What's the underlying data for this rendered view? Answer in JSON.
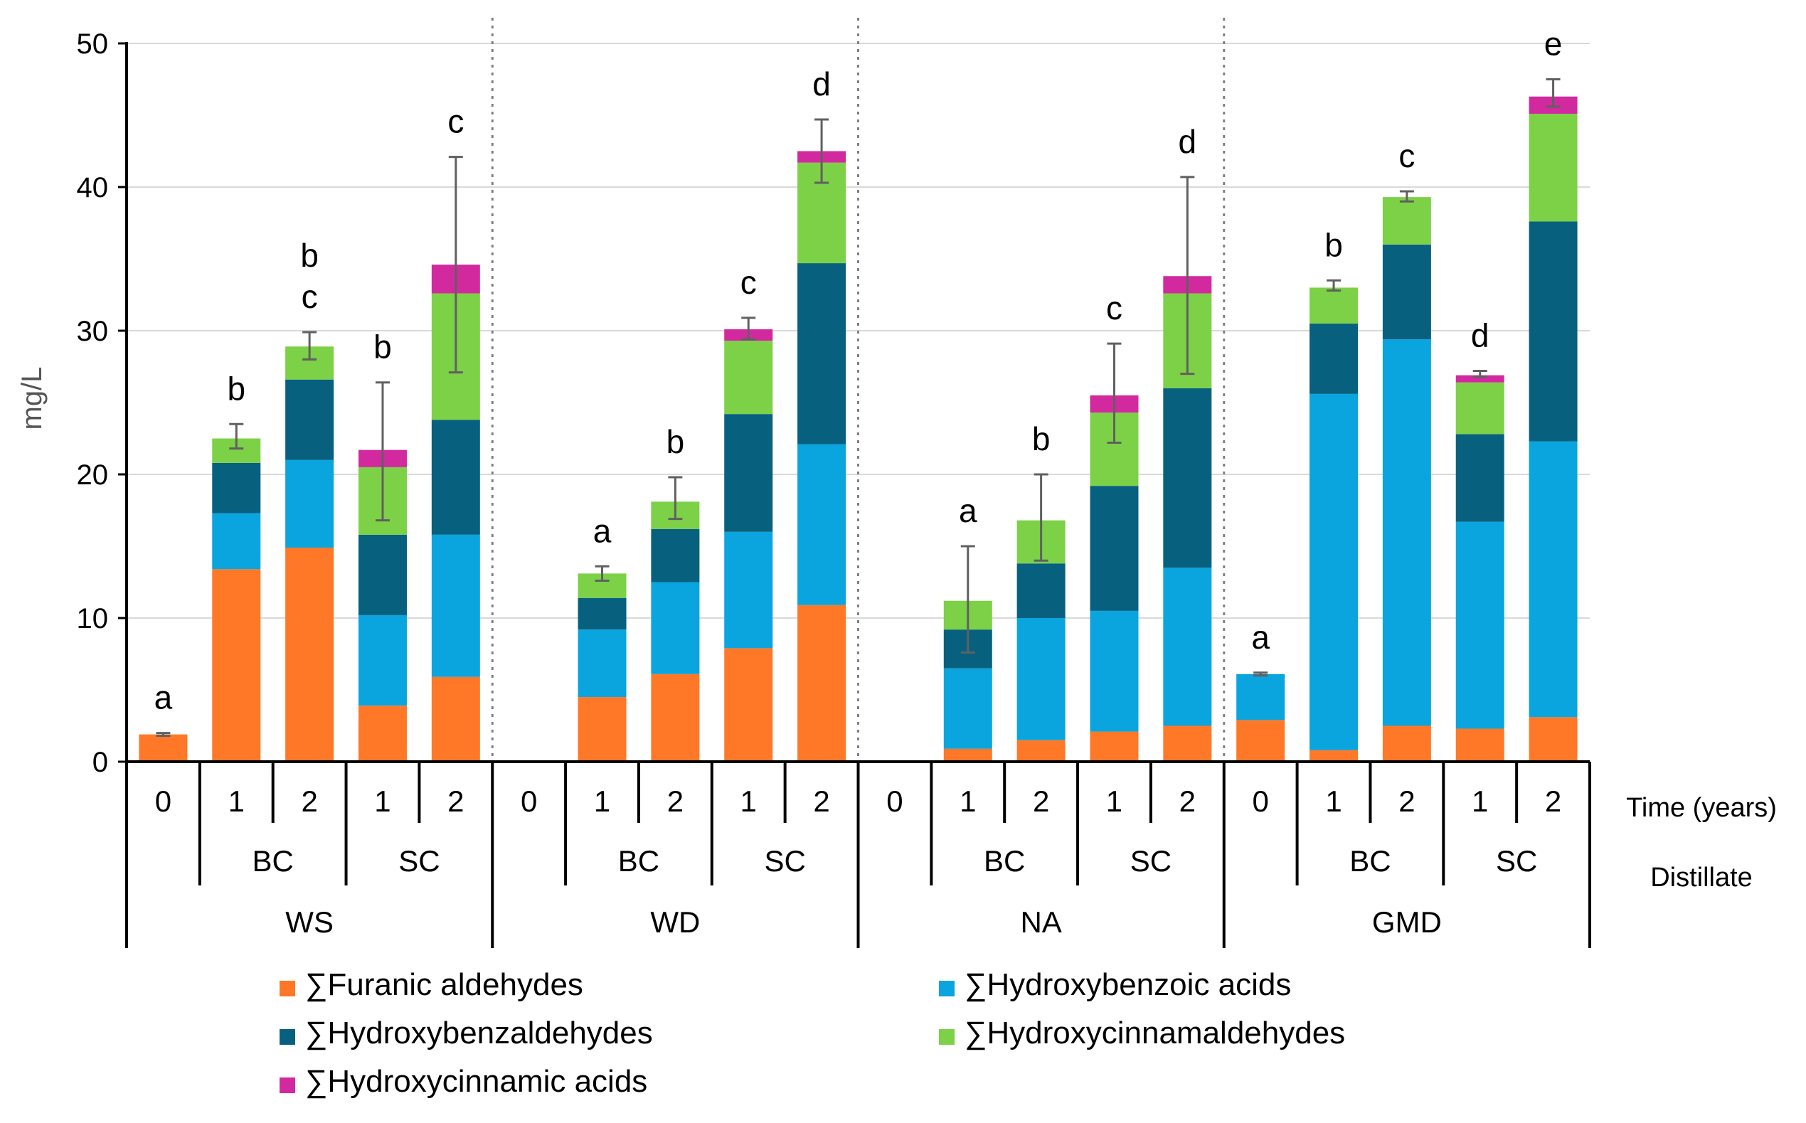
{
  "chart_data": {
    "type": "bar",
    "stacked": true,
    "ylabel": "mg/L",
    "ylim": [
      0,
      50
    ],
    "yticks": [
      0,
      10,
      20,
      30,
      40,
      50
    ],
    "grid": true,
    "time_row_label": "Time (years)",
    "distillate_row_label": "Distillate",
    "distillates": [
      "WS",
      "WD",
      "NA",
      "GMD"
    ],
    "subgroups": [
      "BC",
      "SC"
    ],
    "categories": [
      {
        "distillate": "WS",
        "subgroup": "",
        "time": "0"
      },
      {
        "distillate": "WS",
        "subgroup": "BC",
        "time": "1"
      },
      {
        "distillate": "WS",
        "subgroup": "BC",
        "time": "2"
      },
      {
        "distillate": "WS",
        "subgroup": "SC",
        "time": "1"
      },
      {
        "distillate": "WS",
        "subgroup": "SC",
        "time": "2"
      },
      {
        "distillate": "WD",
        "subgroup": "",
        "time": "0"
      },
      {
        "distillate": "WD",
        "subgroup": "BC",
        "time": "1"
      },
      {
        "distillate": "WD",
        "subgroup": "BC",
        "time": "2"
      },
      {
        "distillate": "WD",
        "subgroup": "SC",
        "time": "1"
      },
      {
        "distillate": "WD",
        "subgroup": "SC",
        "time": "2"
      },
      {
        "distillate": "NA",
        "subgroup": "",
        "time": "0"
      },
      {
        "distillate": "NA",
        "subgroup": "BC",
        "time": "1"
      },
      {
        "distillate": "NA",
        "subgroup": "BC",
        "time": "2"
      },
      {
        "distillate": "NA",
        "subgroup": "SC",
        "time": "1"
      },
      {
        "distillate": "NA",
        "subgroup": "SC",
        "time": "2"
      },
      {
        "distillate": "GMD",
        "subgroup": "",
        "time": "0"
      },
      {
        "distillate": "GMD",
        "subgroup": "BC",
        "time": "1"
      },
      {
        "distillate": "GMD",
        "subgroup": "BC",
        "time": "2"
      },
      {
        "distillate": "GMD",
        "subgroup": "SC",
        "time": "1"
      },
      {
        "distillate": "GMD",
        "subgroup": "SC",
        "time": "2"
      }
    ],
    "series": [
      {
        "name": "∑Furanic aldehydes",
        "color": "#ff7828",
        "values": [
          1.9,
          13.4,
          14.9,
          3.9,
          5.9,
          0,
          4.5,
          6.1,
          7.9,
          10.9,
          0,
          0.9,
          1.5,
          2.1,
          2.5,
          2.9,
          0.8,
          2.5,
          2.3,
          3.1
        ]
      },
      {
        "name": "∑Hydroxybenzoic acids",
        "color": "#0aa5de",
        "values": [
          0,
          3.9,
          6.1,
          6.3,
          9.9,
          0,
          4.7,
          6.4,
          8.1,
          11.2,
          0,
          5.6,
          8.5,
          8.4,
          11.0,
          3.2,
          24.8,
          26.9,
          14.4,
          19.2
        ]
      },
      {
        "name": "∑Hydroxybenzaldehydes",
        "color": "#08607f",
        "values": [
          0,
          3.5,
          5.6,
          5.6,
          8.0,
          0,
          2.2,
          3.7,
          8.2,
          12.6,
          0,
          2.7,
          3.8,
          8.7,
          12.5,
          0,
          4.9,
          6.6,
          6.1,
          15.3
        ]
      },
      {
        "name": "∑Hydroxycinnamaldehydes",
        "color": "#7cd147",
        "values": [
          0,
          1.7,
          2.3,
          4.7,
          8.8,
          0,
          1.7,
          1.9,
          5.1,
          7.0,
          0,
          2.0,
          3.0,
          5.1,
          6.6,
          0,
          2.5,
          3.3,
          3.6,
          7.5
        ]
      },
      {
        "name": "∑Hydroxycinnamic acids",
        "color": "#d3299f",
        "values": [
          0,
          0,
          0,
          1.2,
          2.0,
          0,
          0,
          0,
          0.8,
          0.8,
          0,
          0,
          0,
          1.2,
          1.2,
          0,
          0,
          0,
          0.5,
          1.2
        ]
      }
    ],
    "error_bars": [
      [
        1.8,
        2.0
      ],
      [
        21.8,
        23.5
      ],
      [
        28.0,
        29.9
      ],
      [
        16.8,
        26.4
      ],
      [
        27.1,
        42.1
      ],
      null,
      [
        12.6,
        13.6
      ],
      [
        16.9,
        19.8
      ],
      [
        29.4,
        30.9
      ],
      [
        40.3,
        44.7
      ],
      null,
      [
        7.6,
        15.0
      ],
      [
        14.0,
        20.0
      ],
      [
        22.2,
        29.1
      ],
      [
        27.0,
        40.7
      ],
      [
        6.0,
        6.2
      ],
      [
        32.8,
        33.5
      ],
      [
        39.0,
        39.7
      ],
      [
        26.8,
        27.2
      ],
      [
        45.6,
        47.5
      ]
    ],
    "significance_labels": [
      "a",
      "b",
      "b\nc",
      "b",
      "c",
      "",
      "a",
      "b",
      "c",
      "d",
      "",
      "a",
      "b",
      "c",
      "d",
      "a",
      "b",
      "c",
      "d",
      "e"
    ],
    "legend": {
      "placement": "bottom",
      "columns": 2
    }
  }
}
